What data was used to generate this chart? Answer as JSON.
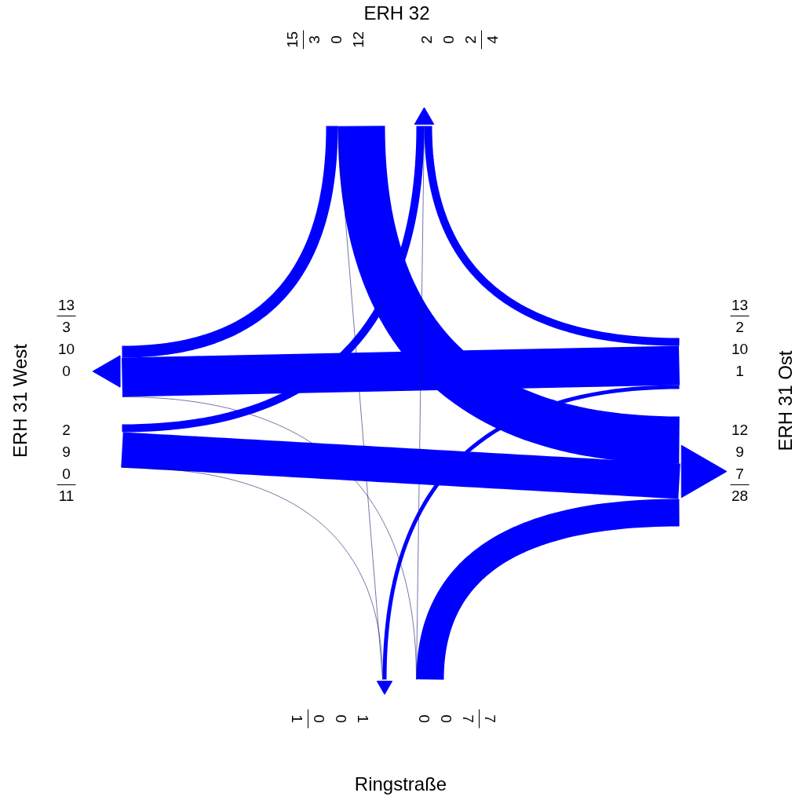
{
  "chart_data": {
    "type": "other",
    "categories": [
      "ERH 32",
      "ERH 31 Ost",
      "Ringstraße",
      "ERH 31 West"
    ],
    "series": [
      {
        "color": "#0000ff",
        "values": [
          null,
          12,
          0,
          3
        ]
      },
      {
        "color": "#0000ff",
        "values": [
          2,
          null,
          1,
          10
        ]
      },
      {
        "color": "#0000ff",
        "values": [
          0,
          7,
          null,
          0
        ]
      },
      {
        "color": "#0000ff",
        "values": [
          2,
          9,
          0,
          null
        ]
      }
    ],
    "annotations": [
      "12",
      "0",
      "3",
      "2",
      "1",
      "10",
      "0",
      "7",
      "0",
      "2",
      "9",
      "0"
    ],
    "totals": [
      [
        "15",
        "4"
      ],
      [
        "13",
        "28"
      ],
      [
        "7",
        "1"
      ],
      [
        "11",
        "13"
      ]
    ],
    "data_labels": true
  }
}
